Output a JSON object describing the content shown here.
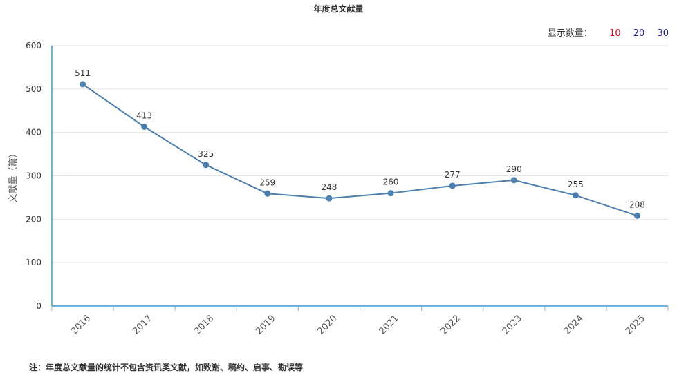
{
  "chart_data": {
    "type": "line",
    "title": "年度总文献量",
    "xlabel": "",
    "ylabel": "文献量（篇）",
    "categories": [
      "2016",
      "2017",
      "2018",
      "2019",
      "2020",
      "2021",
      "2022",
      "2023",
      "2024",
      "2025"
    ],
    "series": [
      {
        "values": [
          511,
          413,
          325,
          259,
          248,
          260,
          277,
          290,
          255,
          208
        ]
      }
    ],
    "ylim": [
      0,
      600
    ],
    "yticks": [
      0,
      100,
      200,
      300,
      400,
      500,
      600
    ],
    "grid": true,
    "data_labels": true,
    "line_color": "#4a7fb0"
  },
  "display_count": {
    "label": "显示数量：",
    "options": [
      {
        "label": "10",
        "color": "#e60012"
      },
      {
        "label": "20",
        "color": "#1a1aa6"
      },
      {
        "label": "30",
        "color": "#1a1aa6"
      }
    ]
  },
  "note": "注：年度总文献量的统计不包含资讯类文献，如致谢、稿约、启事、勘误等"
}
